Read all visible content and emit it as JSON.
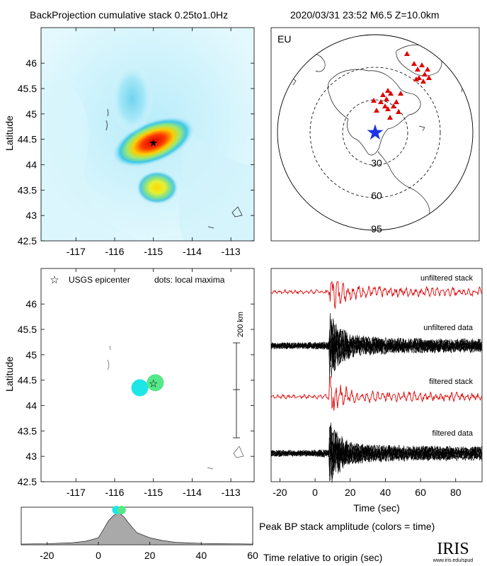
{
  "header": {
    "title": "BackProjection cumulative stack 0.25to1.0Hz",
    "event": "2020/03/31 23:52   M6.5  Z=10.0km"
  },
  "panels": {
    "map_ylabel": "Latitude",
    "globe_label": "EU",
    "globe_rings": [
      "30",
      "60",
      "95"
    ],
    "legend_epicenter": "USGS epicenter",
    "legend_dots": "dots: local maxima",
    "scale_label": "200 km",
    "wave_xlabel": "Time (sec)",
    "trace_labels": [
      "unfiltered stack",
      "unfiltered data",
      "filtered stack",
      "filtered data"
    ],
    "peak_caption": "Peak BP stack amplitude (colors = time)",
    "time_caption": "Time relative to origin (sec)",
    "logo": "IRIS",
    "logo_url": "www.iris.edu/spud"
  },
  "colors": {
    "epicenter": "#000000",
    "stations": "#e00000",
    "globe_epicenter": "#1a33e6",
    "traces_filtered": "#e00000",
    "traces_data": "#000000",
    "peak_fill": "#a9a9a9"
  },
  "chart_data": [
    {
      "type": "heatmap",
      "title": "BackProjection cumulative stack 0.25to1.0Hz",
      "ylabel": "Latitude",
      "xticks": [
        "-117",
        "-116",
        "-115",
        "-114",
        "-113"
      ],
      "yticks": [
        "46",
        "45.5",
        "45",
        "44.5",
        "44",
        "43.5",
        "43",
        "42.5"
      ],
      "xlim": [
        -117.9,
        -112.4
      ],
      "ylim": [
        42.5,
        46.7
      ],
      "peaks": [
        {
          "lon": -115.0,
          "lat": 44.45,
          "relative_amplitude": 1.0
        },
        {
          "lon": -114.9,
          "lat": 43.55,
          "relative_amplitude": 0.55
        },
        {
          "lon": -115.55,
          "lat": 45.3,
          "relative_amplitude": 0.2
        }
      ],
      "epicenter": {
        "lon": -115.0,
        "lat": 44.45
      }
    },
    {
      "type": "scatter",
      "ylabel": "Latitude",
      "legend": [
        "USGS epicenter",
        "dots: local maxima"
      ],
      "xticks": [
        "-117",
        "-116",
        "-115",
        "-114",
        "-113"
      ],
      "yticks": [
        "46",
        "45.5",
        "45",
        "44.5",
        "44",
        "43.5",
        "43",
        "42.5"
      ],
      "xlim": [
        -117.9,
        -112.4
      ],
      "ylim": [
        42.5,
        46.7
      ],
      "points": [
        {
          "lon": -115.35,
          "lat": 44.35,
          "color": "#1ee6e6"
        },
        {
          "lon": -114.95,
          "lat": 44.45,
          "color": "#55e888"
        }
      ],
      "epicenter": {
        "lon": -115.0,
        "lat": 44.45
      }
    },
    {
      "type": "line",
      "xlabel": "Time (sec)",
      "xticks": [
        "-20",
        "0",
        "20",
        "40",
        "60",
        "80"
      ],
      "xlim": [
        -25,
        95
      ],
      "series": [
        {
          "name": "unfiltered stack",
          "color": "#e00000"
        },
        {
          "name": "unfiltered data",
          "color": "#000000"
        },
        {
          "name": "filtered stack",
          "color": "#e00000"
        },
        {
          "name": "filtered data",
          "color": "#000000"
        }
      ],
      "onset_time": 8
    },
    {
      "type": "area",
      "xlabel": "Time relative to origin (sec)",
      "xticks": [
        "-20",
        "0",
        "20",
        "40",
        "60"
      ],
      "xlim": [
        -30,
        60
      ],
      "x": [
        -30,
        -20,
        -10,
        -5,
        0,
        2,
        4,
        6,
        8,
        10,
        12,
        15,
        20,
        25,
        30,
        40,
        50,
        60
      ],
      "values": [
        0.02,
        0.03,
        0.06,
        0.1,
        0.2,
        0.45,
        0.7,
        0.85,
        0.92,
        0.8,
        0.6,
        0.35,
        0.2,
        0.12,
        0.07,
        0.04,
        0.03,
        0.02
      ],
      "markers": [
        {
          "time": 7,
          "color": "#1ee6e6"
        },
        {
          "time": 9,
          "color": "#55e888"
        }
      ]
    }
  ]
}
